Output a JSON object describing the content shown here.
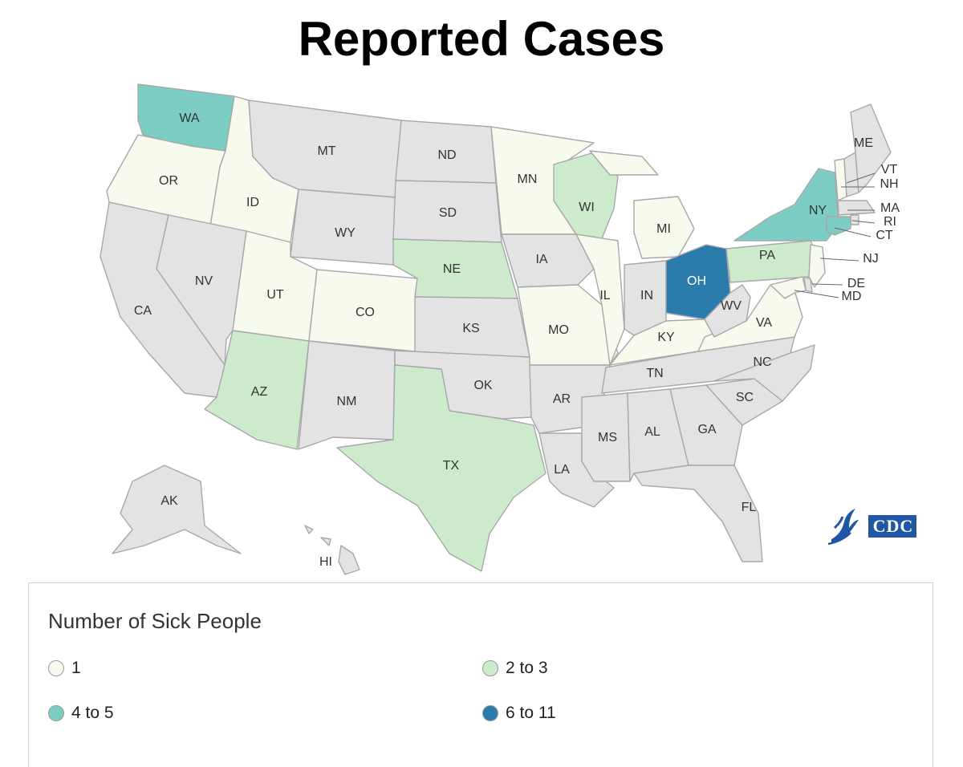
{
  "title": "Reported Cases",
  "colors": {
    "none": "#e3e3e3",
    "c1": "#f6fbee",
    "c2": "#cdeacc",
    "c3": "#7ccdc3",
    "c4": "#2b7cad",
    "border": "#a8a8a8"
  },
  "legend": {
    "title": "Number of Sick People",
    "items": [
      {
        "label": "1",
        "color": "#f6fbee"
      },
      {
        "label": "2 to 3",
        "color": "#cdeacc"
      },
      {
        "label": "4 to 5",
        "color": "#7ccdc3"
      },
      {
        "label": "6 to 11",
        "color": "#2b7cad"
      }
    ]
  },
  "states": {
    "WA": {
      "label": "WA",
      "category": "4 to 5"
    },
    "OR": {
      "label": "OR",
      "category": "1"
    },
    "CA": {
      "label": "CA",
      "category": "none"
    },
    "ID": {
      "label": "ID",
      "category": "1"
    },
    "NV": {
      "label": "NV",
      "category": "none"
    },
    "MT": {
      "label": "MT",
      "category": "none"
    },
    "WY": {
      "label": "WY",
      "category": "none"
    },
    "UT": {
      "label": "UT",
      "category": "1"
    },
    "AZ": {
      "label": "AZ",
      "category": "2 to 3"
    },
    "CO": {
      "label": "CO",
      "category": "1"
    },
    "NM": {
      "label": "NM",
      "category": "none"
    },
    "ND": {
      "label": "ND",
      "category": "none"
    },
    "SD": {
      "label": "SD",
      "category": "none"
    },
    "NE": {
      "label": "NE",
      "category": "2 to 3"
    },
    "KS": {
      "label": "KS",
      "category": "none"
    },
    "OK": {
      "label": "OK",
      "category": "none"
    },
    "TX": {
      "label": "TX",
      "category": "2 to 3"
    },
    "MN": {
      "label": "MN",
      "category": "1"
    },
    "IA": {
      "label": "IA",
      "category": "none"
    },
    "MO": {
      "label": "MO",
      "category": "1"
    },
    "AR": {
      "label": "AR",
      "category": "none"
    },
    "LA": {
      "label": "LA",
      "category": "none"
    },
    "WI": {
      "label": "WI",
      "category": "2 to 3"
    },
    "IL": {
      "label": "IL",
      "category": "1"
    },
    "MI": {
      "label": "MI",
      "category": "1"
    },
    "IN": {
      "label": "IN",
      "category": "none"
    },
    "OH": {
      "label": "OH",
      "category": "6 to 11"
    },
    "KY": {
      "label": "KY",
      "category": "1"
    },
    "TN": {
      "label": "TN",
      "category": "none"
    },
    "MS": {
      "label": "MS",
      "category": "none"
    },
    "AL": {
      "label": "AL",
      "category": "none"
    },
    "GA": {
      "label": "GA",
      "category": "none"
    },
    "FL": {
      "label": "FL",
      "category": "none"
    },
    "SC": {
      "label": "SC",
      "category": "none"
    },
    "NC": {
      "label": "NC",
      "category": "none"
    },
    "VA": {
      "label": "VA",
      "category": "1"
    },
    "WV": {
      "label": "WV",
      "category": "none"
    },
    "PA": {
      "label": "PA",
      "category": "2 to 3"
    },
    "NY": {
      "label": "NY",
      "category": "4 to 5"
    },
    "VT": {
      "label": "VT",
      "category": "1"
    },
    "NH": {
      "label": "NH",
      "category": "none"
    },
    "ME": {
      "label": "ME",
      "category": "none"
    },
    "MA": {
      "label": "MA",
      "category": "none"
    },
    "RI": {
      "label": "RI",
      "category": "none"
    },
    "CT": {
      "label": "CT",
      "category": "4 to 5"
    },
    "NJ": {
      "label": "NJ",
      "category": "1"
    },
    "DE": {
      "label": "DE",
      "category": "none"
    },
    "MD": {
      "label": "MD",
      "category": "1"
    },
    "AK": {
      "label": "AK",
      "category": "none"
    },
    "HI": {
      "label": "HI",
      "category": "none"
    }
  },
  "logo": {
    "text": "CDC",
    "icon": "hhs-eagle-icon"
  }
}
